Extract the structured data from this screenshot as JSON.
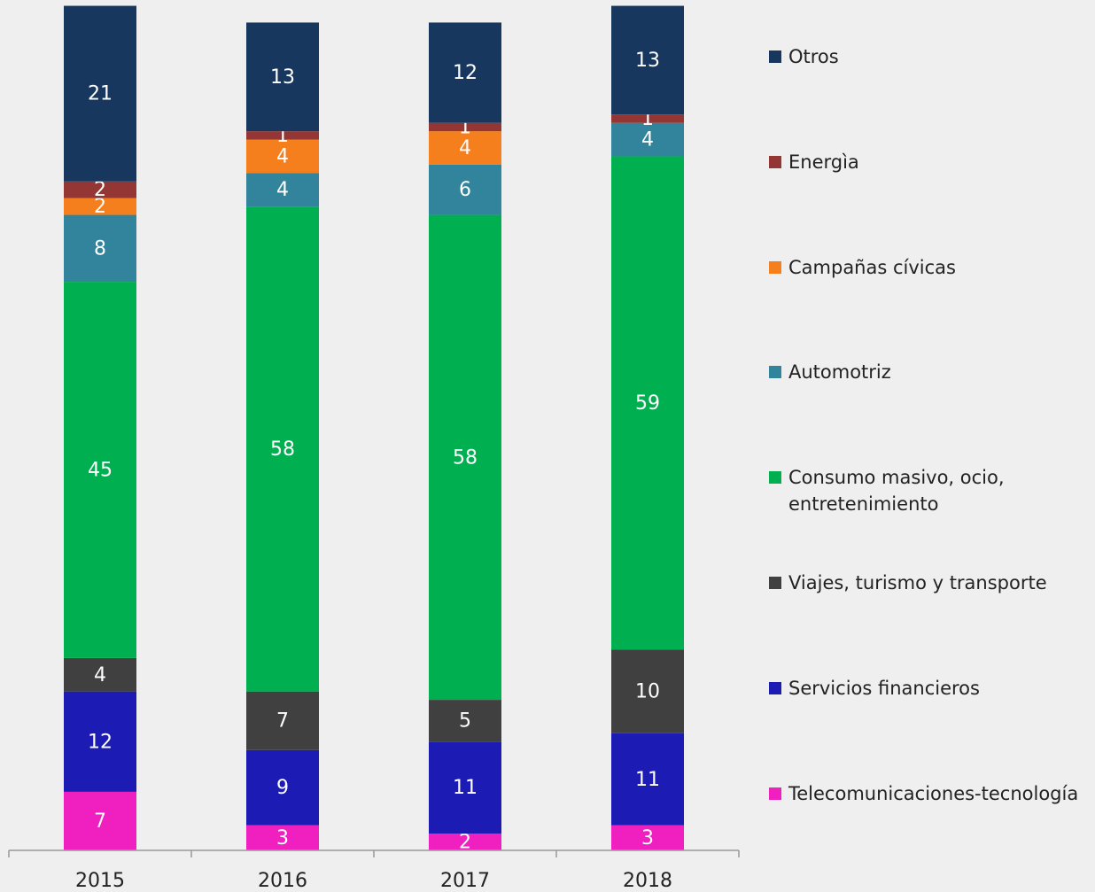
{
  "chart_data": {
    "type": "stacked_bar",
    "categories": [
      "2015",
      "2016",
      "2017",
      "2018"
    ],
    "ylim": [
      0,
      100
    ],
    "series": [
      {
        "name": "Telecomunicaciones-tecnología",
        "color": "#f01fc0",
        "values": [
          7,
          3,
          2,
          3
        ]
      },
      {
        "name": "Servicios financieros",
        "color": "#1c1cb4",
        "values": [
          12,
          9,
          11,
          11
        ]
      },
      {
        "name": "Viajes, turismo y transporte",
        "color": "#404040",
        "values": [
          4,
          7,
          5,
          10
        ]
      },
      {
        "name": "Consumo masivo, ocio, entretenimiento",
        "color": "#00b050",
        "values": [
          45,
          58,
          58,
          59
        ]
      },
      {
        "name": "Automotriz",
        "color": "#31849b",
        "values": [
          8,
          4,
          6,
          4
        ]
      },
      {
        "name": "Campañas cívicas",
        "color": "#f47f1c",
        "values": [
          2,
          4,
          4,
          null
        ]
      },
      {
        "name": "Energìa",
        "color": "#943634",
        "values": [
          2,
          1,
          1,
          1
        ]
      },
      {
        "name": "Otros",
        "color": "#17375e",
        "values": [
          21,
          13,
          12,
          13
        ]
      }
    ]
  }
}
